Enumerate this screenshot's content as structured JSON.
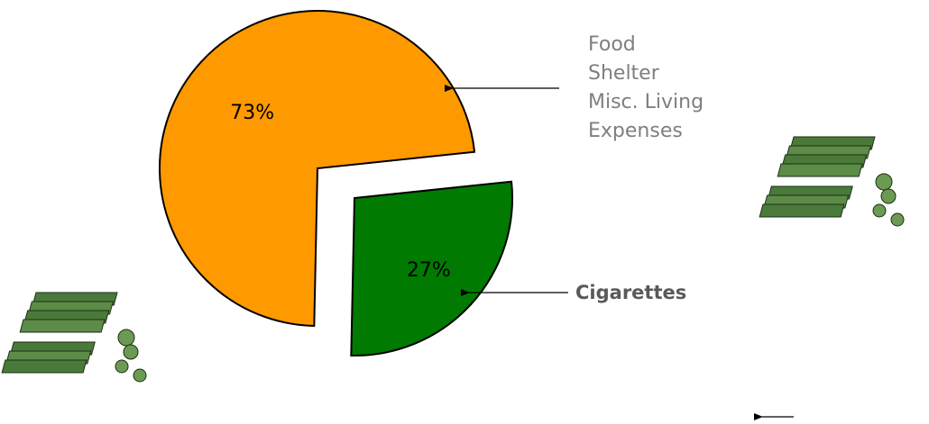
{
  "chart_data": {
    "type": "pie",
    "categories": [
      [
        "Food",
        "Shelter",
        "Misc. Living",
        "Expenses"
      ],
      [
        "Cigarettes"
      ]
    ],
    "values": [
      73,
      27
    ],
    "value_labels": [
      "73%",
      "27%"
    ],
    "colors": [
      "#ff9900",
      "#007a00"
    ]
  }
}
